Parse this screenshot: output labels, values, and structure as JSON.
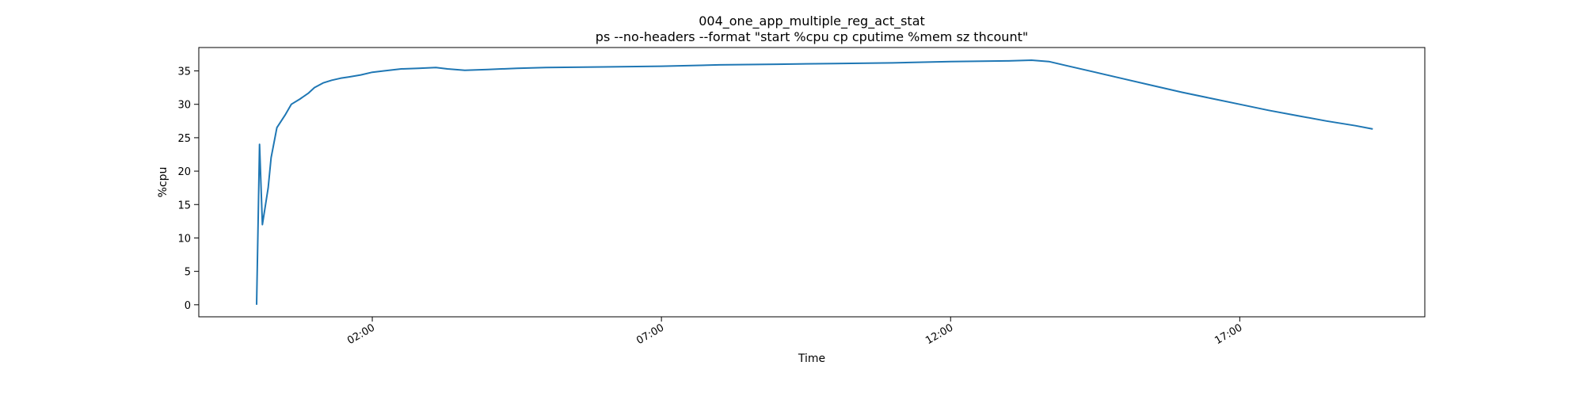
{
  "chart_data": {
    "type": "line",
    "title": "004_one_app_multiple_reg_act_stat",
    "subtitle": "ps --no-headers --format \"start %cpu cp cputime %mem sz thcount\"",
    "xlabel": "Time",
    "ylabel": "%cpu",
    "x_unit": "hours_since_midnight",
    "xlim": [
      -1.0,
      20.2
    ],
    "ylim": [
      -1.8,
      38.5
    ],
    "x_ticks": [
      {
        "value": 2,
        "label": "02:00"
      },
      {
        "value": 7,
        "label": "07:00"
      },
      {
        "value": 12,
        "label": "12:00"
      },
      {
        "value": 17,
        "label": "17:00"
      }
    ],
    "y_ticks": [
      {
        "value": 0,
        "label": "0"
      },
      {
        "value": 5,
        "label": "5"
      },
      {
        "value": 10,
        "label": "10"
      },
      {
        "value": 15,
        "label": "15"
      },
      {
        "value": 20,
        "label": "20"
      },
      {
        "value": 25,
        "label": "25"
      },
      {
        "value": 30,
        "label": "30"
      },
      {
        "value": 35,
        "label": "35"
      }
    ],
    "grid": false,
    "colors": {
      "line": "#1f77b4"
    },
    "series": [
      {
        "values": [
          [
            0.0,
            0.0
          ],
          [
            0.05,
            24.0
          ],
          [
            0.1,
            12.0
          ],
          [
            0.2,
            17.5
          ],
          [
            0.25,
            22.0
          ],
          [
            0.35,
            26.5
          ],
          [
            0.5,
            28.5
          ],
          [
            0.6,
            30.0
          ],
          [
            0.75,
            30.8
          ],
          [
            0.9,
            31.7
          ],
          [
            1.0,
            32.5
          ],
          [
            1.15,
            33.2
          ],
          [
            1.3,
            33.6
          ],
          [
            1.45,
            33.9
          ],
          [
            1.6,
            34.1
          ],
          [
            1.8,
            34.4
          ],
          [
            2.0,
            34.8
          ],
          [
            2.2,
            35.0
          ],
          [
            2.5,
            35.3
          ],
          [
            2.8,
            35.4
          ],
          [
            3.1,
            35.5
          ],
          [
            3.3,
            35.3
          ],
          [
            3.6,
            35.1
          ],
          [
            4.0,
            35.2
          ],
          [
            4.5,
            35.4
          ],
          [
            5.0,
            35.5
          ],
          [
            6.0,
            35.6
          ],
          [
            7.0,
            35.7
          ],
          [
            8.0,
            35.9
          ],
          [
            9.0,
            36.0
          ],
          [
            10.0,
            36.1
          ],
          [
            11.0,
            36.2
          ],
          [
            12.0,
            36.4
          ],
          [
            13.0,
            36.5
          ],
          [
            13.4,
            36.6
          ],
          [
            13.7,
            36.4
          ],
          [
            14.0,
            35.8
          ],
          [
            14.5,
            34.8
          ],
          [
            15.0,
            33.8
          ],
          [
            15.5,
            32.8
          ],
          [
            16.0,
            31.8
          ],
          [
            16.5,
            30.9
          ],
          [
            17.0,
            30.0
          ],
          [
            17.5,
            29.1
          ],
          [
            18.0,
            28.3
          ],
          [
            18.5,
            27.5
          ],
          [
            19.0,
            26.8
          ],
          [
            19.3,
            26.3
          ]
        ]
      }
    ]
  }
}
